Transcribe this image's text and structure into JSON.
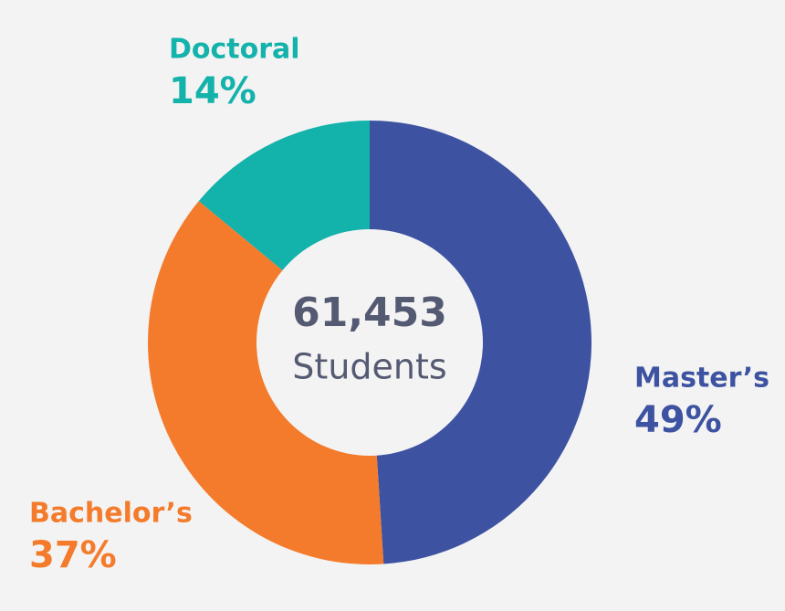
{
  "chart_data": {
    "type": "donut",
    "categories": [
      "Master’s",
      "Bachelor’s",
      "Doctoral"
    ],
    "values": [
      49,
      37,
      14
    ],
    "value_labels": [
      "49%",
      "37%",
      "14%"
    ],
    "colors": [
      "#3d52a1",
      "#f47b2b",
      "#13b2ab"
    ],
    "center_label": "61,453",
    "center_sublabel": "Students"
  }
}
